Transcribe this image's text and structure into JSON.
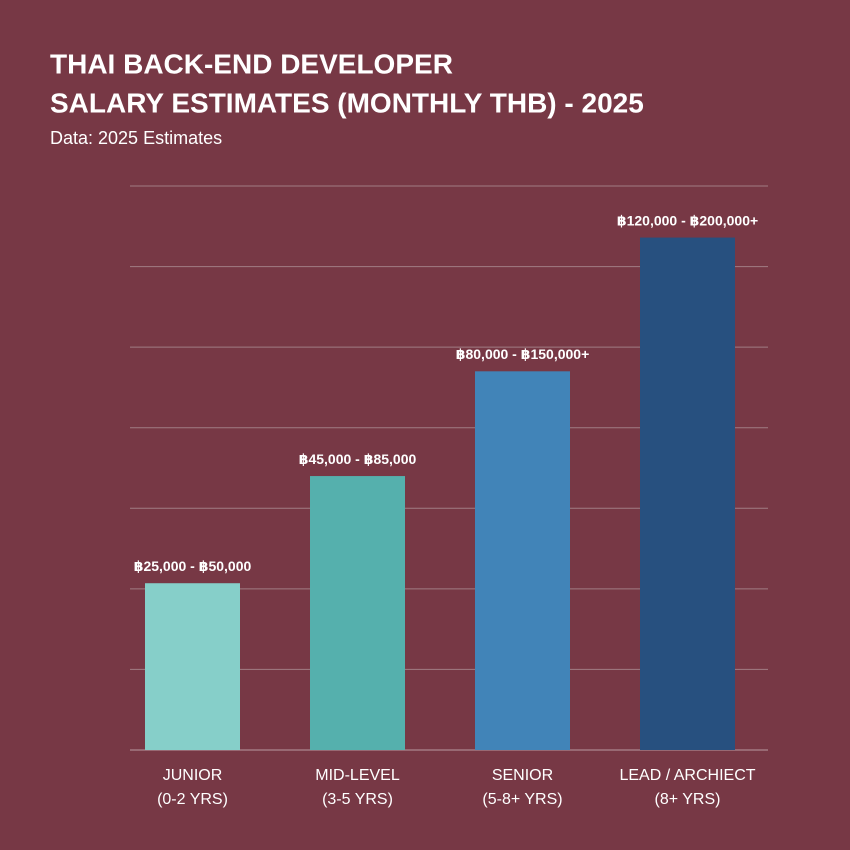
{
  "chart_data": {
    "type": "bar",
    "title": [
      "THAI BACK-END DEVELOPER",
      "SALARY ESTIMATES (MONTHLY THB) - 2025"
    ],
    "subtitle": "Data: 2025 Estimates",
    "categories": [
      "JUNIOR",
      "MID-LEVEL",
      "SENIOR",
      "LEAD / ARCHIECT"
    ],
    "category_notes": [
      "(0-2 YRS)",
      "(3-5 YRS)",
      "(5-8+ YRS)",
      "(8+ YRS)"
    ],
    "values": [
      2.07,
      3.4,
      4.7,
      6.36
    ],
    "annotations": [
      "฿25,000 - ฿50,000",
      "฿45,000 - ฿85,000",
      "฿80,000 - ฿150,000+",
      "฿120,000 - ฿200,000+"
    ],
    "colors": [
      "#86cfc9",
      "#55b0ad",
      "#4184b8",
      "#27507f"
    ],
    "ylim": [
      0,
      7
    ],
    "yticks": [
      0,
      1,
      2,
      3,
      4,
      5,
      6,
      7
    ],
    "grid": true
  }
}
